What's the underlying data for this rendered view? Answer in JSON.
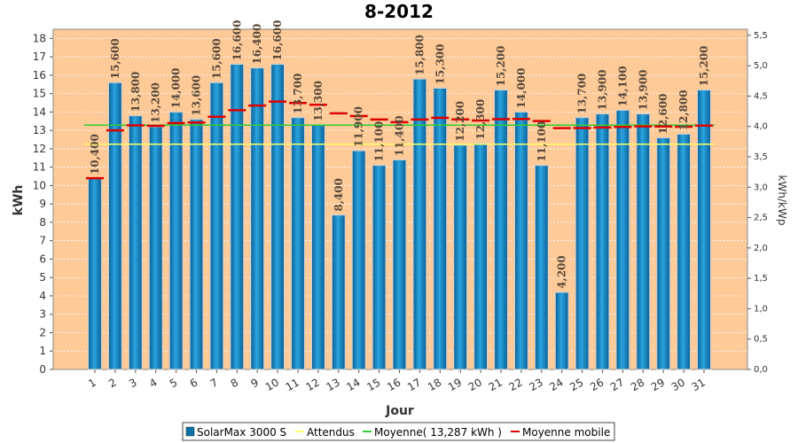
{
  "chart_data": {
    "type": "bar",
    "title": "8-2012",
    "xlabel": "Jour",
    "ylabel": "kWh",
    "y2label": "kWh/kWp",
    "ylim": [
      0,
      18.5
    ],
    "y2lim": [
      0,
      5.6
    ],
    "yticks": [
      "0",
      "1",
      "2",
      "3",
      "4",
      "5",
      "6",
      "7",
      "8",
      "9",
      "10",
      "11",
      "12",
      "13",
      "14",
      "15",
      "16",
      "17",
      "18"
    ],
    "y2ticks": [
      "0,0",
      "0,5",
      "1,0",
      "1,5",
      "2,0",
      "2,5",
      "3,0",
      "3,5",
      "4,0",
      "4,5",
      "5,0",
      "5,5"
    ],
    "categories": [
      "1",
      "2",
      "3",
      "4",
      "5",
      "6",
      "7",
      "8",
      "9",
      "10",
      "11",
      "12",
      "13",
      "14",
      "15",
      "16",
      "17",
      "18",
      "19",
      "20",
      "21",
      "22",
      "23",
      "24",
      "25",
      "26",
      "27",
      "28",
      "29",
      "30",
      "31"
    ],
    "series": [
      {
        "name": "SolarMax 3000 S",
        "values": [
          10.4,
          15.6,
          13.8,
          13.2,
          14.0,
          13.6,
          15.6,
          16.6,
          16.4,
          16.6,
          13.7,
          13.3,
          8.4,
          11.9,
          11.1,
          11.4,
          15.8,
          15.3,
          12.2,
          12.3,
          15.2,
          14.0,
          11.1,
          4.2,
          13.7,
          13.9,
          14.1,
          13.9,
          12.6,
          12.8,
          15.2
        ],
        "labels": [
          "10,400",
          "15,600",
          "13,800",
          "13,200",
          "14,000",
          "13,600",
          "15,600",
          "16,600",
          "16,400",
          "16,600",
          "13,700",
          "13,300",
          "8,400",
          "11,900",
          "11,100",
          "11,400",
          "15,800",
          "15,300",
          "12,200",
          "12,300",
          "15,200",
          "14,000",
          "11,100",
          "4,200",
          "13,700",
          "13,900",
          "14,100",
          "13,900",
          "12,600",
          "12,800",
          "15,200"
        ]
      },
      {
        "name": "Attendus",
        "value": 12.25
      },
      {
        "name": "Moyenne( 13,287 kWh )",
        "value": 13.287
      },
      {
        "name": "Moyenne mobile",
        "values": [
          10.4,
          13.0,
          13.27,
          13.25,
          13.4,
          13.43,
          13.74,
          14.1,
          14.35,
          14.57,
          14.49,
          14.39,
          13.93,
          13.78,
          13.59,
          13.45,
          13.59,
          13.68,
          13.6,
          13.54,
          13.61,
          13.62,
          13.51,
          13.12,
          13.13,
          13.16,
          13.19,
          13.22,
          13.21,
          13.2,
          13.26
        ]
      }
    ],
    "colors": {
      "bar": "#0d6fa8",
      "bar_light": "#29a3df",
      "plot_bg": "#fdca98",
      "attendus": "#ffff66",
      "moyenne": "#33cc33",
      "moyenne_mobile": "#dd0000"
    },
    "legend_position": "bottom",
    "grid": true
  }
}
